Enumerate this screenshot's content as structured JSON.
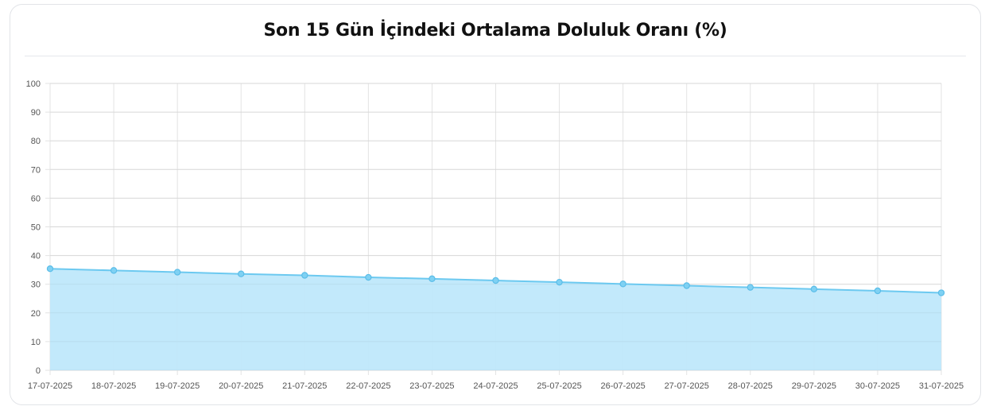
{
  "card": {
    "title": "Son 15 Gün İçindeki Ortalama Doluluk Oranı (%)"
  },
  "chart_data": {
    "type": "area",
    "title": "Son 15 Gün İçindeki Ortalama Doluluk Oranı (%)",
    "xlabel": "",
    "ylabel": "",
    "ylim": [
      0,
      100
    ],
    "yticks": [
      0,
      10,
      20,
      30,
      40,
      50,
      60,
      70,
      80,
      90,
      100
    ],
    "grid": true,
    "legend": "none",
    "categories": [
      "17-07-2025",
      "18-07-2025",
      "19-07-2025",
      "20-07-2025",
      "21-07-2025",
      "22-07-2025",
      "23-07-2025",
      "24-07-2025",
      "25-07-2025",
      "26-07-2025",
      "27-07-2025",
      "28-07-2025",
      "29-07-2025",
      "30-07-2025",
      "31-07-2025"
    ],
    "values": [
      35.4,
      34.8,
      34.2,
      33.6,
      33.1,
      32.4,
      31.9,
      31.3,
      30.7,
      30.1,
      29.5,
      28.9,
      28.3,
      27.7,
      27.0
    ],
    "colors": {
      "line": "#6cc9f0",
      "fill": "#bfe8fb",
      "point": "#7fd1f3",
      "grid": "#e3e3e3"
    }
  }
}
